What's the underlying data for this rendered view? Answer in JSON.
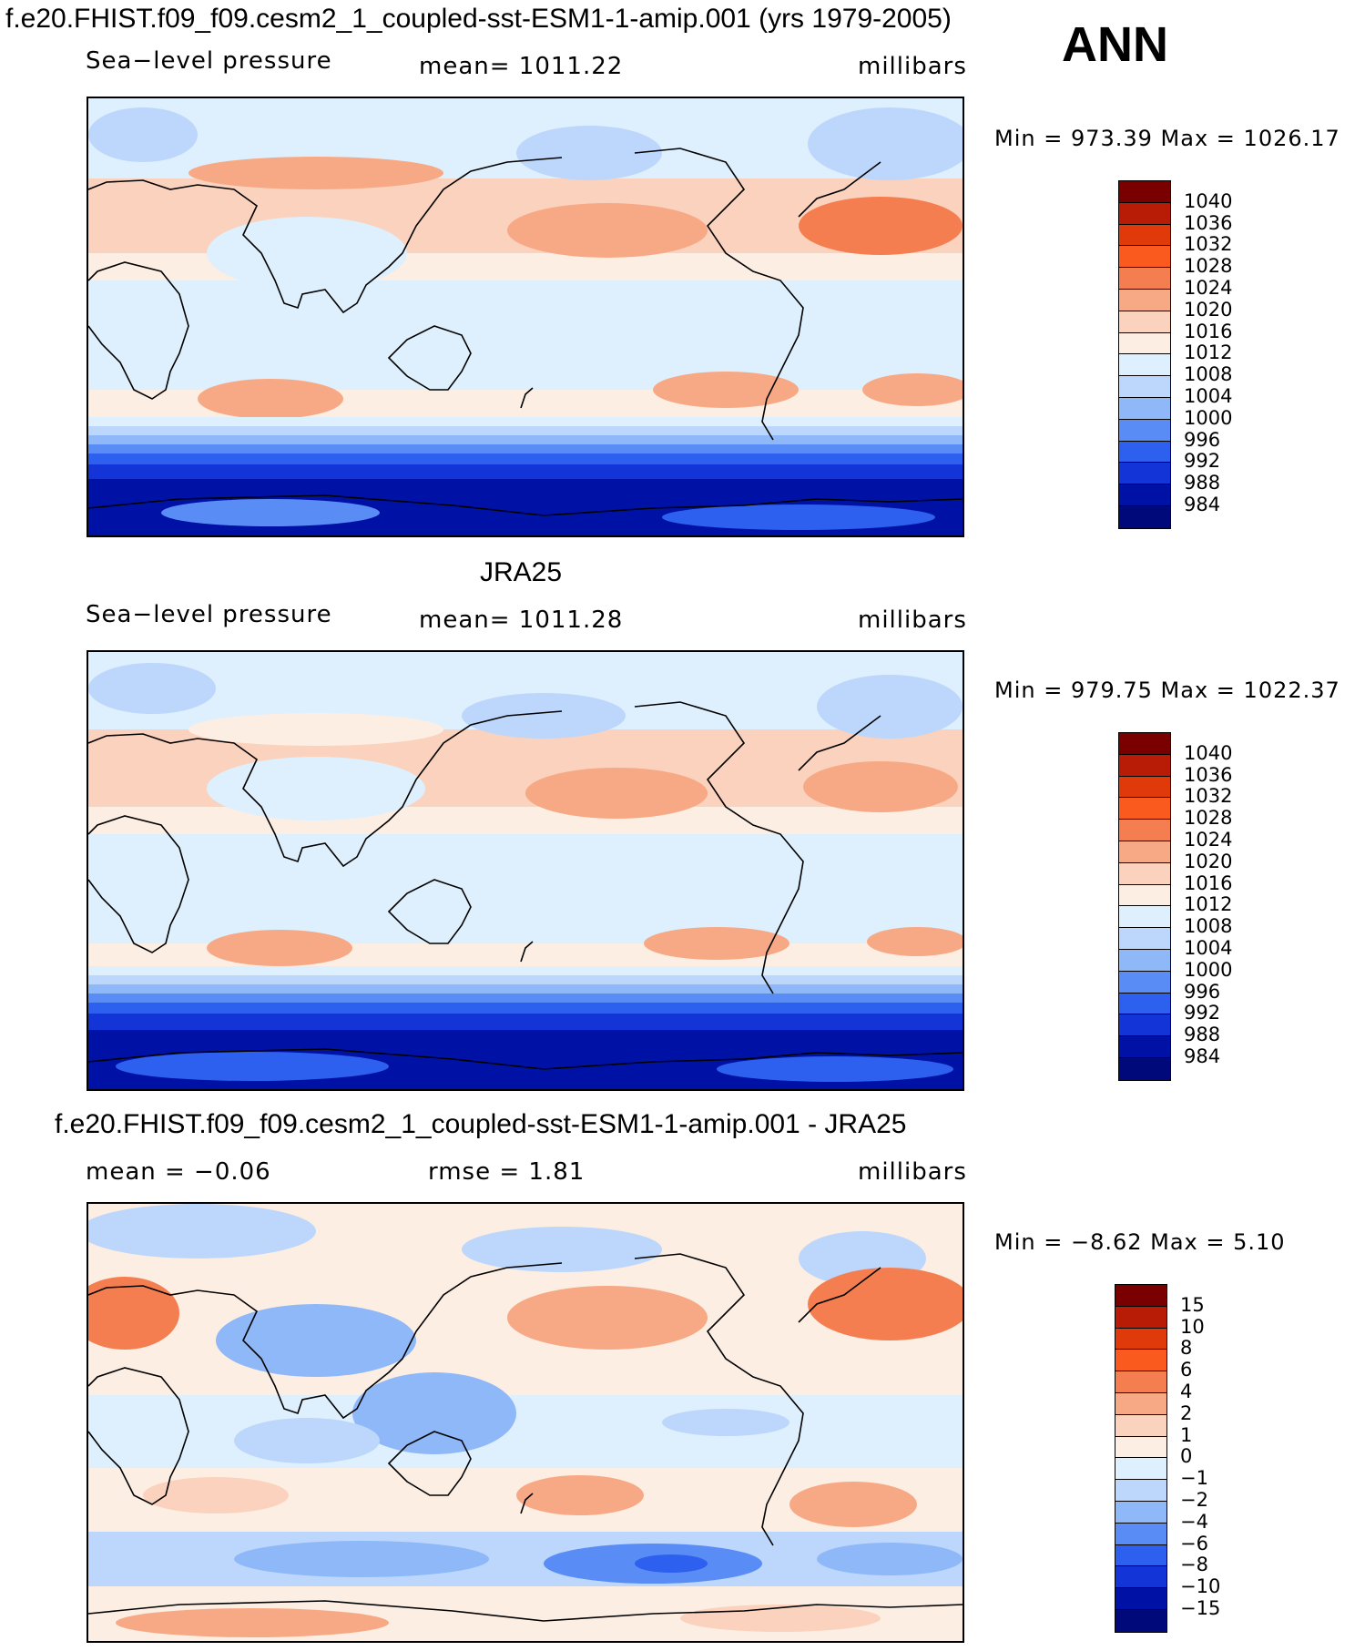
{
  "header": {
    "title": "f.e20.FHIST.f09_f09.cesm2_1_coupled-sst-ESM1-1-amip.001 (yrs 1979-2005)",
    "season": "ANN"
  },
  "panels": [
    {
      "id": "model",
      "title": "",
      "left_text": "Sea−level pressure",
      "center_text": "mean=  1011.22",
      "right_text": "millibars",
      "minmax": "Min  =  973.39  Max  =  1026.17",
      "colorbar": {
        "labels": [
          "1040",
          "1036",
          "1032",
          "1028",
          "1024",
          "1020",
          "1016",
          "1012",
          "1008",
          "1004",
          "1000",
          "996",
          "992",
          "988",
          "984"
        ],
        "colors": [
          "#7a0000",
          "#b81c06",
          "#e03a0a",
          "#fa5a1e",
          "#f57e50",
          "#f7a985",
          "#fbd2bd",
          "#fdeee3",
          "#deeffd",
          "#bcd7fb",
          "#8fb8f8",
          "#5a8cf5",
          "#2e60f0",
          "#1334d6",
          "#0012a6",
          "#00097a"
        ]
      }
    },
    {
      "id": "obs",
      "title": "JRA25",
      "left_text": "Sea−level pressure",
      "center_text": "mean=  1011.28",
      "right_text": "millibars",
      "minmax": "Min  =  979.75  Max  =  1022.37",
      "colorbar": {
        "labels": [
          "1040",
          "1036",
          "1032",
          "1028",
          "1024",
          "1020",
          "1016",
          "1012",
          "1008",
          "1004",
          "1000",
          "996",
          "992",
          "988",
          "984"
        ],
        "colors": [
          "#7a0000",
          "#b81c06",
          "#e03a0a",
          "#fa5a1e",
          "#f57e50",
          "#f7a985",
          "#fbd2bd",
          "#fdeee3",
          "#deeffd",
          "#bcd7fb",
          "#8fb8f8",
          "#5a8cf5",
          "#2e60f0",
          "#1334d6",
          "#0012a6",
          "#00097a"
        ]
      }
    },
    {
      "id": "diff",
      "title": "f.e20.FHIST.f09_f09.cesm2_1_coupled-sst-ESM1-1-amip.001 - JRA25",
      "left_text": "mean  =    −0.06",
      "center_text": "rmse  =     1.81",
      "right_text": "millibars",
      "minmax": "Min  =    −8.62  Max  =      5.10",
      "colorbar": {
        "labels": [
          "15",
          "10",
          "8",
          "6",
          "4",
          "2",
          "1",
          "0",
          "−1",
          "−2",
          "−4",
          "−6",
          "−8",
          "−10",
          "−15"
        ],
        "colors": [
          "#7a0000",
          "#b81c06",
          "#e03a0a",
          "#fa5a1e",
          "#f57e50",
          "#f7a985",
          "#fbd2bd",
          "#fdeee3",
          "#deeffd",
          "#bcd7fb",
          "#8fb8f8",
          "#5a8cf5",
          "#2e60f0",
          "#1334d6",
          "#0012a6",
          "#00097a"
        ]
      }
    }
  ]
}
